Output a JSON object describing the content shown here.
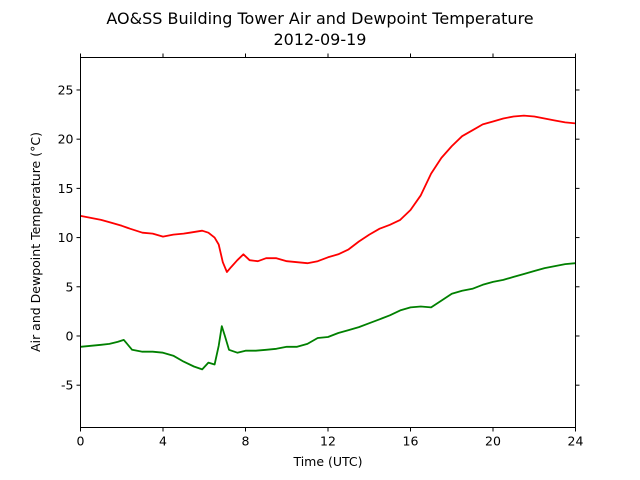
{
  "chart_data": {
    "type": "line",
    "title": "AO&SS Building Tower Air and Dewpoint Temperature",
    "subtitle": "2012-09-19",
    "xlabel": "Time (UTC)",
    "ylabel": "Air and Dewpoint Temperature (°C)",
    "xlim": [
      0,
      24
    ],
    "ylim": [
      -9.3,
      28.3
    ],
    "x_ticks": [
      0,
      4,
      8,
      12,
      16,
      20,
      24
    ],
    "y_ticks": [
      -5,
      0,
      5,
      10,
      15,
      20,
      25
    ],
    "grid": false,
    "legend": "none",
    "series": [
      {
        "color": "#ff0000",
        "points": [
          [
            0,
            12.2
          ],
          [
            0.5,
            12.0
          ],
          [
            1,
            11.8
          ],
          [
            1.5,
            11.5
          ],
          [
            2,
            11.2
          ],
          [
            2.4,
            10.9
          ],
          [
            3,
            10.5
          ],
          [
            3.5,
            10.4
          ],
          [
            4,
            10.1
          ],
          [
            4.5,
            10.3
          ],
          [
            5,
            10.4
          ],
          [
            5.3,
            10.5
          ],
          [
            5.6,
            10.6
          ],
          [
            5.9,
            10.7
          ],
          [
            6.2,
            10.5
          ],
          [
            6.5,
            10.0
          ],
          [
            6.7,
            9.3
          ],
          [
            6.9,
            7.5
          ],
          [
            7.1,
            6.5
          ],
          [
            7.3,
            7.0
          ],
          [
            7.6,
            7.7
          ],
          [
            7.9,
            8.3
          ],
          [
            8.2,
            7.7
          ],
          [
            8.6,
            7.6
          ],
          [
            9,
            7.9
          ],
          [
            9.5,
            7.9
          ],
          [
            10,
            7.6
          ],
          [
            10.5,
            7.5
          ],
          [
            11,
            7.4
          ],
          [
            11.5,
            7.6
          ],
          [
            12,
            8.0
          ],
          [
            12.5,
            8.3
          ],
          [
            13,
            8.8
          ],
          [
            13.5,
            9.6
          ],
          [
            14,
            10.3
          ],
          [
            14.5,
            10.9
          ],
          [
            15,
            11.3
          ],
          [
            15.5,
            11.8
          ],
          [
            16,
            12.8
          ],
          [
            16.5,
            14.3
          ],
          [
            17,
            16.5
          ],
          [
            17.5,
            18.1
          ],
          [
            18,
            19.3
          ],
          [
            18.5,
            20.3
          ],
          [
            19,
            20.9
          ],
          [
            19.5,
            21.5
          ],
          [
            20,
            21.8
          ],
          [
            20.5,
            22.1
          ],
          [
            21,
            22.3
          ],
          [
            21.5,
            22.4
          ],
          [
            22,
            22.3
          ],
          [
            22.5,
            22.1
          ],
          [
            23,
            21.9
          ],
          [
            23.5,
            21.7
          ],
          [
            24,
            21.6
          ]
        ]
      },
      {
        "color": "#008000",
        "points": [
          [
            0,
            -1.1
          ],
          [
            0.5,
            -1.0
          ],
          [
            1,
            -0.9
          ],
          [
            1.4,
            -0.8
          ],
          [
            1.8,
            -0.6
          ],
          [
            2.1,
            -0.4
          ],
          [
            2.5,
            -1.4
          ],
          [
            3,
            -1.6
          ],
          [
            3.5,
            -1.6
          ],
          [
            4,
            -1.7
          ],
          [
            4.5,
            -2.0
          ],
          [
            5,
            -2.6
          ],
          [
            5.5,
            -3.1
          ],
          [
            5.9,
            -3.4
          ],
          [
            6.2,
            -2.7
          ],
          [
            6.5,
            -2.9
          ],
          [
            6.7,
            -1.0
          ],
          [
            6.85,
            1.0
          ],
          [
            7.0,
            0.0
          ],
          [
            7.2,
            -1.4
          ],
          [
            7.6,
            -1.7
          ],
          [
            8,
            -1.5
          ],
          [
            8.5,
            -1.5
          ],
          [
            9,
            -1.4
          ],
          [
            9.5,
            -1.3
          ],
          [
            10,
            -1.1
          ],
          [
            10.5,
            -1.1
          ],
          [
            11,
            -0.8
          ],
          [
            11.5,
            -0.2
          ],
          [
            12,
            -0.1
          ],
          [
            12.5,
            0.3
          ],
          [
            13,
            0.6
          ],
          [
            13.5,
            0.9
          ],
          [
            14,
            1.3
          ],
          [
            14.5,
            1.7
          ],
          [
            15,
            2.1
          ],
          [
            15.5,
            2.6
          ],
          [
            16,
            2.9
          ],
          [
            16.5,
            3.0
          ],
          [
            17,
            2.9
          ],
          [
            17.5,
            3.6
          ],
          [
            18,
            4.3
          ],
          [
            18.5,
            4.6
          ],
          [
            19,
            4.8
          ],
          [
            19.5,
            5.2
          ],
          [
            20,
            5.5
          ],
          [
            20.5,
            5.7
          ],
          [
            21,
            6.0
          ],
          [
            21.5,
            6.3
          ],
          [
            22,
            6.6
          ],
          [
            22.5,
            6.9
          ],
          [
            23,
            7.1
          ],
          [
            23.5,
            7.3
          ],
          [
            24,
            7.4
          ]
        ]
      }
    ]
  }
}
